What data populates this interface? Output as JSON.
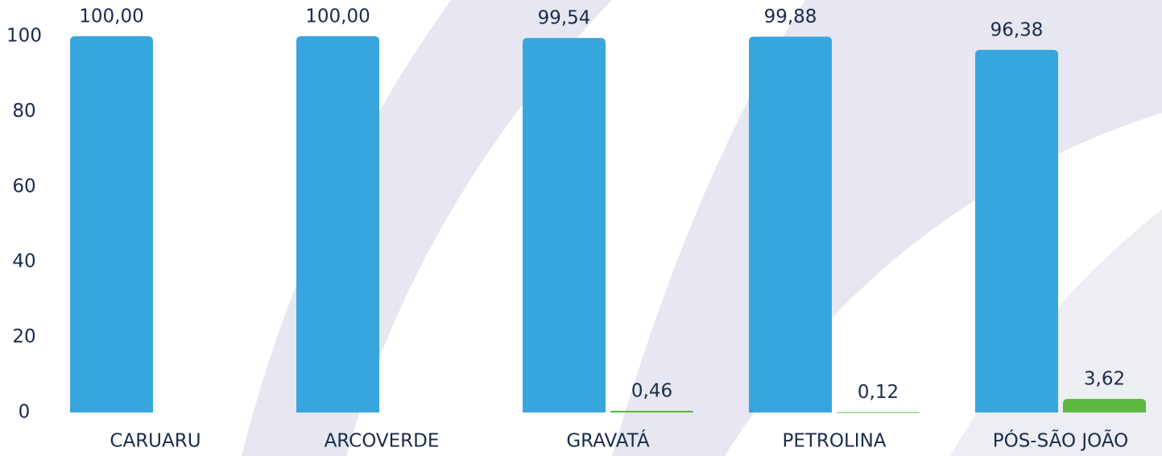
{
  "chart_data": {
    "type": "bar",
    "categories": [
      "CARUARU",
      "ARCOVERDE",
      "GRAVATÁ",
      "PETROLINA",
      "PÓS-SÃO JOÃO"
    ],
    "series": [
      {
        "color": "#38a6de",
        "values": [
          100.0,
          100.0,
          99.54,
          99.88,
          96.38
        ],
        "value_labels": [
          "100,00",
          "100,00",
          "99,54",
          "99,88",
          "96,38"
        ]
      },
      {
        "color": "#5cb840",
        "values": [
          null,
          null,
          0.46,
          0.12,
          3.62
        ],
        "value_labels": [
          null,
          null,
          "0,46",
          "0,12",
          "3,62"
        ]
      }
    ],
    "ylim": [
      0,
      100
    ],
    "yticks": [
      0,
      20,
      40,
      60,
      80,
      100
    ],
    "grid": false
  }
}
